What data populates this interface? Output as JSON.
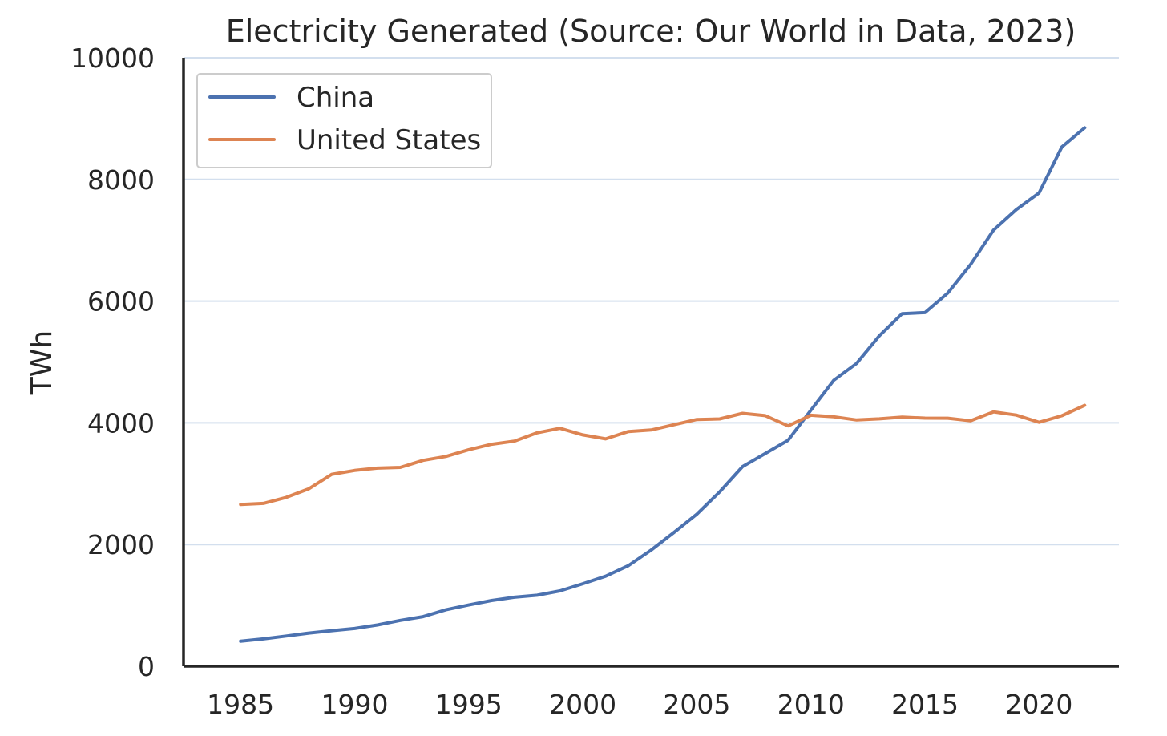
{
  "chart_data": {
    "type": "line",
    "title": "Electricity Generated (Source: Our World in Data, 2023)",
    "xlabel": "",
    "ylabel": "TWh",
    "xlim": [
      1982.5,
      2023.5
    ],
    "ylim": [
      0,
      10000
    ],
    "xticks": [
      "1985",
      "1990",
      "1995",
      "2000",
      "2005",
      "2010",
      "2015",
      "2020"
    ],
    "yticks": [
      "0",
      "2000",
      "4000",
      "6000",
      "8000",
      "10000"
    ],
    "grid": "horizontal",
    "legend_position": "upper-left",
    "x": [
      1985,
      1986,
      1987,
      1988,
      1989,
      1990,
      1991,
      1992,
      1993,
      1994,
      1995,
      1996,
      1997,
      1998,
      1999,
      2000,
      2001,
      2002,
      2003,
      2004,
      2005,
      2006,
      2007,
      2008,
      2009,
      2010,
      2011,
      2012,
      2013,
      2014,
      2015,
      2016,
      2017,
      2018,
      2019,
      2020,
      2021,
      2022
    ],
    "series": [
      {
        "name": "China",
        "color": "#4c72b0",
        "values": [
          411,
          449,
          497,
          545,
          585,
          621,
          678,
          754,
          815,
          928,
          1007,
          1081,
          1134,
          1167,
          1239,
          1356,
          1480,
          1654,
          1910,
          2200,
          2500,
          2866,
          3280,
          3497,
          3714,
          4208,
          4700,
          4976,
          5431,
          5794,
          5811,
          6133,
          6604,
          7166,
          7503,
          7779,
          8534,
          8849
        ]
      },
      {
        "name": "United States",
        "color": "#dd8452",
        "values": [
          2657,
          2676,
          2775,
          2917,
          3154,
          3218,
          3256,
          3268,
          3383,
          3448,
          3558,
          3648,
          3700,
          3837,
          3911,
          3802,
          3736,
          3858,
          3883,
          3970,
          4055,
          4065,
          4157,
          4119,
          3950,
          4125,
          4100,
          4047,
          4066,
          4094,
          4078,
          4077,
          4034,
          4181,
          4128,
          4009,
          4117,
          4287
        ]
      }
    ]
  }
}
